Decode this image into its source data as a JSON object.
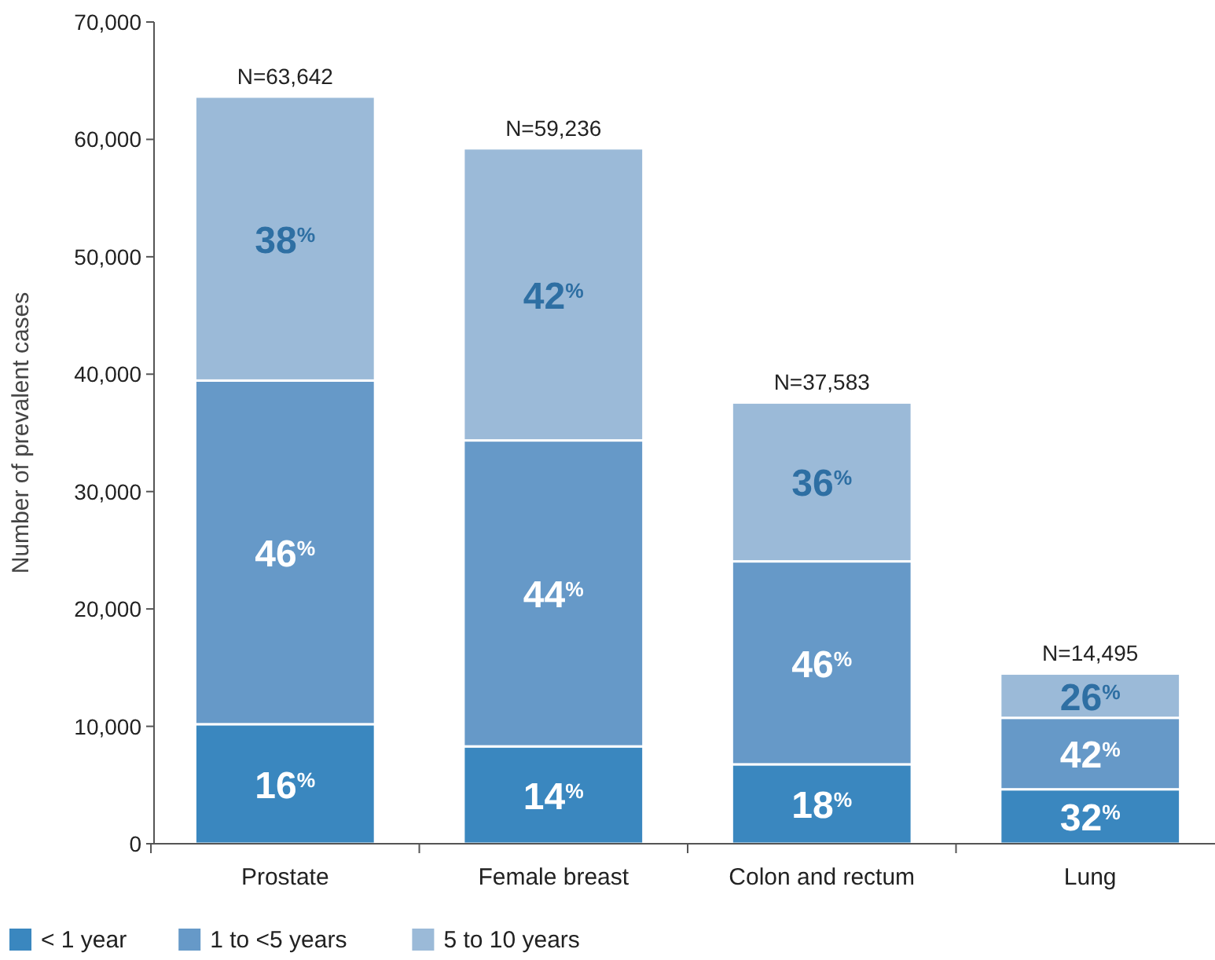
{
  "chart_data": {
    "type": "bar",
    "stacked": true,
    "ylabel": "Number of prevalent cases",
    "categories": [
      "Prostate",
      "Female breast",
      "Colon and rectum",
      "Lung"
    ],
    "series": [
      {
        "name": "< 1 year",
        "color": "#3a87bf",
        "values": [
          10183,
          8293,
          6765,
          4638
        ]
      },
      {
        "name": "1 to <5 years",
        "color": "#6699c8",
        "values": [
          29275,
          26064,
          17288,
          6088
        ]
      },
      {
        "name": "5 to 10 years",
        "color": "#9bbad8",
        "values": [
          24184,
          24879,
          13530,
          3769
        ]
      }
    ],
    "annotations": [
      "16$^{%}$",
      "46$^{%}$",
      "38$^{%}$",
      "14$^{%}$",
      "44$^{%}$",
      "42$^{%}$",
      "18$^{%}$",
      "46$^{%}$",
      "36$^{%}$",
      "32$^{%}$",
      "42$^{%}$",
      "26$^{%}$"
    ],
    "totals": [
      "N=63,642",
      "N=59,236",
      "N=37,583",
      "N=14,495"
    ],
    "ylim": [
      0,
      70000
    ],
    "yticks": [
      {
        "value": 0,
        "label": "0"
      },
      {
        "value": 10000,
        "label": "10,000"
      },
      {
        "value": 20000,
        "label": "20,000"
      },
      {
        "value": 30000,
        "label": "30,000"
      },
      {
        "value": 40000,
        "label": "40,000"
      },
      {
        "value": 50000,
        "label": "50,000"
      },
      {
        "value": 60000,
        "label": "60,000"
      },
      {
        "value": 70000,
        "label": "70,000"
      }
    ],
    "legend": "bottom left",
    "grid": false
  }
}
